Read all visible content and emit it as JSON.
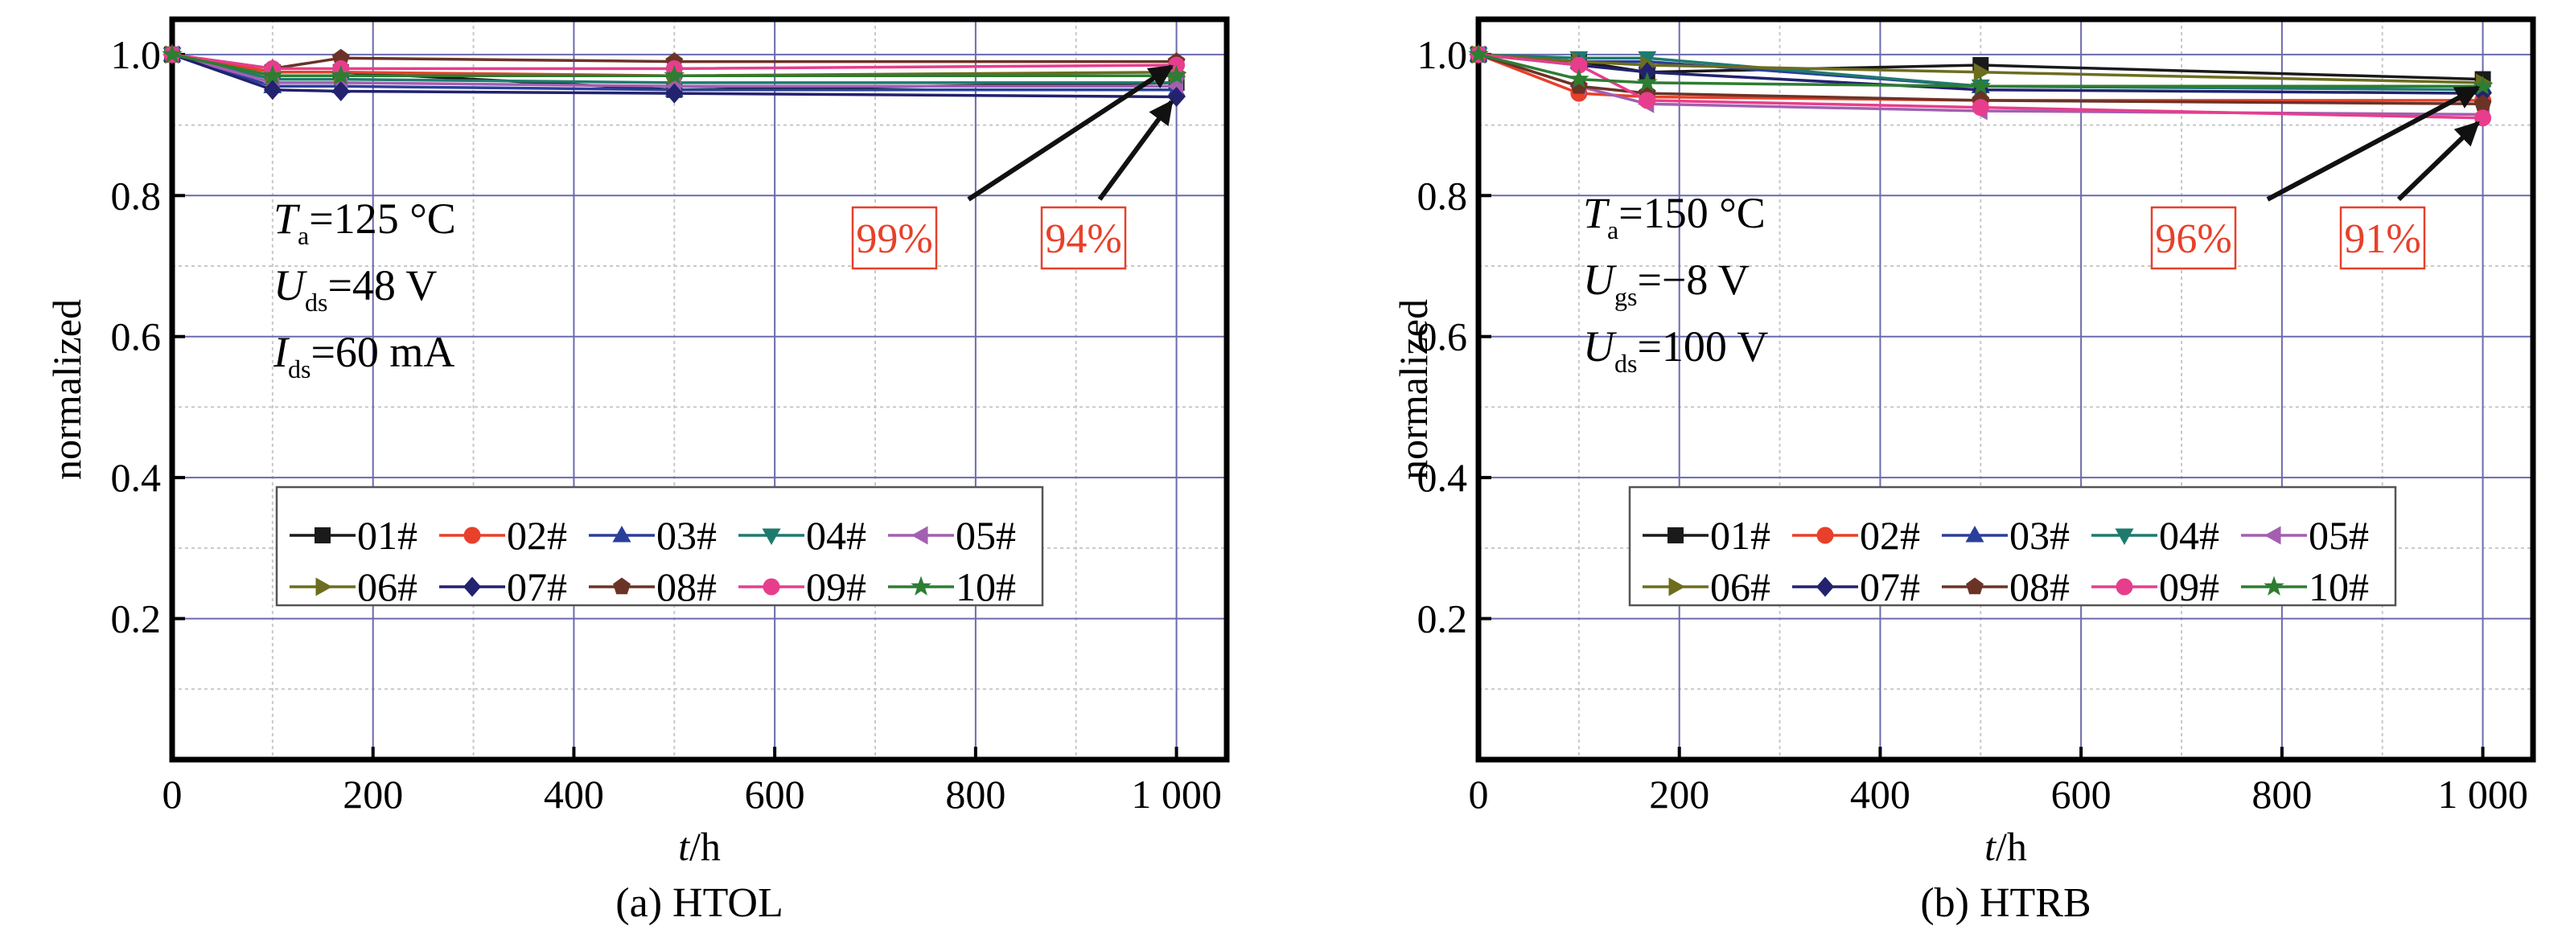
{
  "chart_data": [
    {
      "type": "line",
      "panel": "a",
      "caption": "(a) HTOL",
      "ylabel": "normalized",
      "xlabel_var": "t",
      "xlabel_unit": "/h",
      "xlim": [
        0,
        1050
      ],
      "ylim": [
        0,
        1.05
      ],
      "x_ticks": [
        0,
        200,
        400,
        600,
        800,
        1000
      ],
      "x_tick_labels": [
        "0",
        "200",
        "400",
        "600",
        "800",
        "1 000"
      ],
      "y_ticks": [
        0.2,
        0.4,
        0.6,
        0.8,
        1.0
      ],
      "y_tick_labels": [
        "0.2",
        "0.4",
        "0.6",
        "0.8",
        "1.0"
      ],
      "grid": true,
      "conditions": [
        {
          "var": "T",
          "sub": "a",
          "value": "=125 °C"
        },
        {
          "var": "U",
          "sub": "ds",
          "value": "=48 V"
        },
        {
          "var": "I",
          "sub": "ds",
          "value": "=60 mA"
        }
      ],
      "annotations": [
        {
          "text": "99%",
          "x": 1000,
          "y": 0.99
        },
        {
          "text": "94%",
          "x": 1000,
          "y": 0.94
        }
      ],
      "legend_position": "bottom-center",
      "x": [
        0,
        100,
        168,
        500,
        1000
      ],
      "series": [
        {
          "name": "01#",
          "values": [
            1.0,
            0.975,
            0.975,
            0.95,
            0.96
          ]
        },
        {
          "name": "02#",
          "values": [
            1.0,
            0.975,
            0.975,
            0.97,
            0.97
          ]
        },
        {
          "name": "03#",
          "values": [
            1.0,
            0.955,
            0.955,
            0.95,
            0.95
          ]
        },
        {
          "name": "04#",
          "values": [
            1.0,
            0.965,
            0.965,
            0.96,
            0.96
          ]
        },
        {
          "name": "05#",
          "values": [
            1.0,
            0.96,
            0.96,
            0.955,
            0.955
          ]
        },
        {
          "name": "06#",
          "values": [
            1.0,
            0.97,
            0.97,
            0.97,
            0.975
          ]
        },
        {
          "name": "07#",
          "values": [
            1.0,
            0.95,
            0.948,
            0.945,
            0.94
          ]
        },
        {
          "name": "08#",
          "values": [
            1.0,
            0.98,
            0.995,
            0.99,
            0.99
          ]
        },
        {
          "name": "09#",
          "values": [
            1.0,
            0.98,
            0.98,
            0.98,
            0.985
          ]
        },
        {
          "name": "10#",
          "values": [
            1.0,
            0.97,
            0.97,
            0.97,
            0.97
          ]
        }
      ]
    },
    {
      "type": "line",
      "panel": "b",
      "caption": "(b) HTRB",
      "ylabel": "normalized",
      "xlabel_var": "t",
      "xlabel_unit": "/h",
      "xlim": [
        0,
        1050
      ],
      "ylim": [
        0,
        1.05
      ],
      "x_ticks": [
        0,
        200,
        400,
        600,
        800,
        1000
      ],
      "x_tick_labels": [
        "0",
        "200",
        "400",
        "600",
        "800",
        "1 000"
      ],
      "y_ticks": [
        0.2,
        0.4,
        0.6,
        0.8,
        1.0
      ],
      "y_tick_labels": [
        "0.2",
        "0.4",
        "0.6",
        "0.8",
        "1.0"
      ],
      "grid": true,
      "conditions": [
        {
          "var": "T",
          "sub": "a",
          "value": "=150 °C"
        },
        {
          "var": "U",
          "sub": "gs",
          "value": "=−8 V"
        },
        {
          "var": "U",
          "sub": "ds",
          "value": "=100 V"
        }
      ],
      "annotations": [
        {
          "text": "96%",
          "x": 1000,
          "y": 0.96
        },
        {
          "text": "91%",
          "x": 1000,
          "y": 0.91
        }
      ],
      "legend_position": "bottom-center",
      "x": [
        0,
        100,
        168,
        500,
        1000
      ],
      "series": [
        {
          "name": "01#",
          "values": [
            1.0,
            0.99,
            0.975,
            0.985,
            0.965
          ]
        },
        {
          "name": "02#",
          "values": [
            1.0,
            0.945,
            0.94,
            0.935,
            0.935
          ]
        },
        {
          "name": "03#",
          "values": [
            1.0,
            0.99,
            0.99,
            0.955,
            0.955
          ]
        },
        {
          "name": "04#",
          "values": [
            1.0,
            0.995,
            0.995,
            0.955,
            0.95
          ]
        },
        {
          "name": "05#",
          "values": [
            1.0,
            0.955,
            0.93,
            0.92,
            0.915
          ]
        },
        {
          "name": "06#",
          "values": [
            1.0,
            0.99,
            0.985,
            0.975,
            0.96
          ]
        },
        {
          "name": "07#",
          "values": [
            1.0,
            0.985,
            0.975,
            0.95,
            0.945
          ]
        },
        {
          "name": "08#",
          "values": [
            1.0,
            0.955,
            0.945,
            0.935,
            0.93
          ]
        },
        {
          "name": "09#",
          "values": [
            1.0,
            0.985,
            0.935,
            0.925,
            0.91
          ]
        },
        {
          "name": "10#",
          "values": [
            1.0,
            0.965,
            0.96,
            0.955,
            0.955
          ]
        }
      ]
    }
  ],
  "series_style": [
    {
      "color": "#1a1a1a",
      "marker": "square"
    },
    {
      "color": "#e8402a",
      "marker": "circle"
    },
    {
      "color": "#2a3f9a",
      "marker": "triangle-up"
    },
    {
      "color": "#1f7a6e",
      "marker": "triangle-down"
    },
    {
      "color": "#a35fb0",
      "marker": "triangle-left"
    },
    {
      "color": "#6d6d1f",
      "marker": "triangle-right"
    },
    {
      "color": "#22226e",
      "marker": "diamond"
    },
    {
      "color": "#6b3326",
      "marker": "pentagon"
    },
    {
      "color": "#e63e8c",
      "marker": "circle"
    },
    {
      "color": "#2d7d32",
      "marker": "star"
    }
  ],
  "colors": {
    "grid_major": "#6a6aad",
    "grid_minor": "#c8c8c8",
    "axis": "#000000",
    "annotation": "#e8402a"
  }
}
